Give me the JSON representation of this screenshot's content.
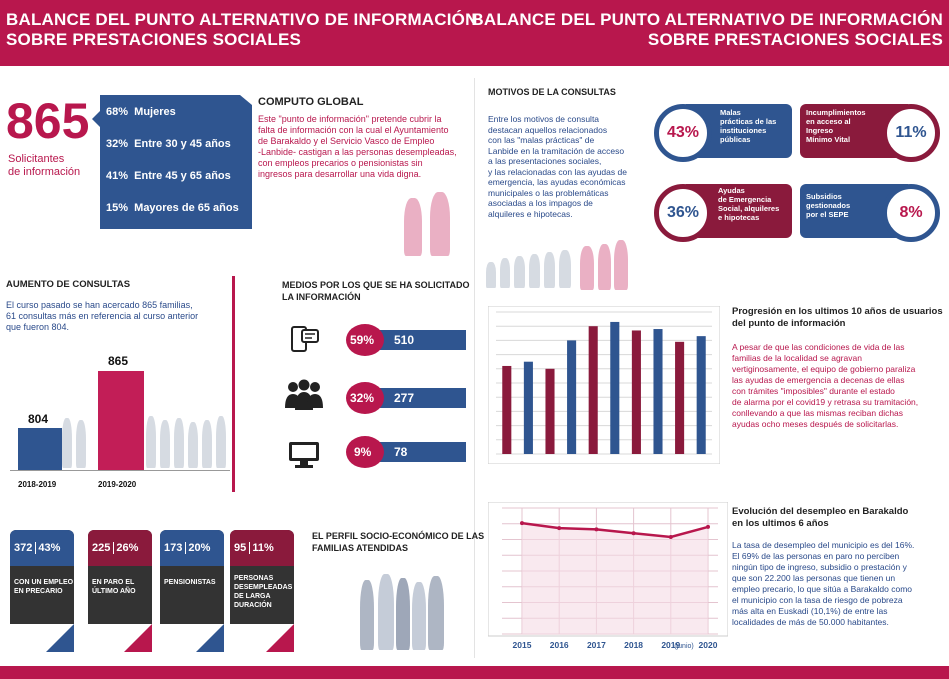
{
  "header": {
    "left_line1": "BALANCE DEL PUNTO ALTERNATIVO DE INFORMACIÓN",
    "left_line2": "SOBRE PRESTACIONES SOCIALES",
    "right_line1": "BALANCE DEL PUNTO ALTERNATIVO DE INFORMACIÓN",
    "right_line2": "SOBRE PRESTACIONES SOCIALES"
  },
  "solicitantes": {
    "number": "865",
    "label_line1": "Solicitantes",
    "label_line2": "de información",
    "rows": [
      {
        "pct": "68%",
        "label": "Mujeres"
      },
      {
        "pct": "32%",
        "label": "Entre 30 y 45 años"
      },
      {
        "pct": "41%",
        "label": "Entre 45 y 65 años"
      },
      {
        "pct": "15%",
        "label": "Mayores de 65 años"
      }
    ]
  },
  "computo": {
    "title": "COMPUTO GLOBAL",
    "lines": [
      "Este \"punto de información\" pretende cubrir la",
      "falta de información con la cual el Ayuntamiento",
      "de Barakaldo y el Servicio Vasco de Empleo",
      "-Lanbide- castigan a las personas desempleadas,",
      "con empleos precarios o pensionistas sin",
      "ingresos para desarrollar una vida digna."
    ]
  },
  "motivos": {
    "title": "MOTIVOS DE LA CONSULTAS",
    "lines": [
      "Entre los motivos de consulta",
      "destacan aquellos relacionados",
      "con las \"malas prácticas\" de",
      "Lanbide en la tramitación de acceso",
      "a las presentaciones sociales,",
      "y las relacionadas con las ayudas de",
      "emergencia, las ayudas económicas",
      "municipales o las problemáticas",
      "asociadas a los impagos de",
      "alquileres e hipotecas."
    ],
    "items": [
      {
        "pct": "43%",
        "label": [
          "Malas",
          "prácticas de las",
          "instituciones",
          "públicas"
        ]
      },
      {
        "pct": "11%",
        "label": [
          "Incumplimientos",
          "en acceso al",
          "Ingreso",
          "Mínimo Vital"
        ]
      },
      {
        "pct": "36%",
        "label": [
          "Ayudas",
          "de Emergencia",
          "Social, alquileres",
          "e hipotecas"
        ]
      },
      {
        "pct": "8%",
        "label": [
          "Subsidios",
          "gestionados",
          "por el SEPE"
        ]
      }
    ]
  },
  "aumento": {
    "title": "AUMENTO DE CONSULTAS",
    "lines": [
      "El curso pasado se han acercado 865 familias,",
      "61 consultas más en referencia al curso anterior",
      "que fueron 804."
    ],
    "bars": [
      {
        "label": "2018-2019",
        "value": "804"
      },
      {
        "label": "2019-2020",
        "value": "865"
      }
    ]
  },
  "medios": {
    "title_line1": "MEDIOS POR LOS QUE SE HA SOLICITADO",
    "title_line2": "LA INFORMACIÓN",
    "rows": [
      {
        "icon": "phone-icon",
        "pct": "59%",
        "value": "510"
      },
      {
        "icon": "people-icon",
        "pct": "32%",
        "value": "277"
      },
      {
        "icon": "computer-icon",
        "pct": "9%",
        "value": "78"
      }
    ]
  },
  "perfil": {
    "title_line1": "EL PERFIL SOCIO-ECONÓMICO DE LAS",
    "title_line2": "FAMILIAS ATENDIDAS",
    "cards": [
      {
        "num": "372",
        "pct": "43%",
        "label": [
          "CON UN EMPLEO",
          "EN PRECARIO"
        ]
      },
      {
        "num": "225",
        "pct": "26%",
        "label": [
          "EN PARO EL",
          "ÚLTIMO AÑO"
        ]
      },
      {
        "num": "173",
        "pct": "20%",
        "label": [
          "PENSIONISTAS"
        ]
      },
      {
        "num": "95",
        "pct": "11%",
        "label": [
          "PERSONAS",
          "DESEMPLEADAS",
          "DE LARGA",
          "DURACIÓN"
        ]
      }
    ]
  },
  "progresion": {
    "title_line1": "Progresión en los ultimos 10 años de usuarios",
    "title_line2": "del punto de información",
    "lines": [
      "A pesar de que las condiciones de vida de las",
      "familias de la localidad se agravan",
      "vertiginosamente, el equipo de gobierno paraliza",
      "las ayudas de emergencia a decenas de ellas",
      "con trámites \"imposibles\" durante el estado",
      "de alarma por el covid19 y retrasa su tramitación,",
      "conllevando a que las mismas reciban dichas",
      "ayudas ocho meses después de solicitarlas."
    ]
  },
  "evolucion": {
    "title_line1": "Evolución del desempleo en Barakaldo",
    "title_line2": "en los ultimos 6 años",
    "lines": [
      "La tasa de desempleo del municipio es del 16%.",
      "El 69% de las personas en paro no perciben",
      "ningún tipo de ingreso, subsidio o prestación y",
      "que son 22.200 las personas que tienen un",
      "empleo precario, lo que sitúa a Barakaldo como",
      "el municipio con la tasa de riesgo de pobreza",
      "más alta en Euskadi (10,1%) de entre las",
      "localidades de más de 50.000 habitantes."
    ]
  },
  "colors": {
    "primary": "#b8174d",
    "navy": "#2f5590",
    "wine": "#8a1a3c",
    "text": "#2a4a8a"
  },
  "chart_data": [
    {
      "type": "bar",
      "categories": [
        "",
        "",
        "",
        "",
        "",
        "",
        "",
        "",
        "",
        ""
      ],
      "values": [
        62,
        65,
        60,
        80,
        90,
        93,
        87,
        88,
        79,
        83
      ],
      "series_colors": [
        "#8a1a3c",
        "#2f5590"
      ],
      "ylim": [
        0,
        100
      ],
      "grid": true
    },
    {
      "type": "line",
      "x": [
        "2015",
        "2016",
        "2017",
        "2018",
        "2019",
        "2020"
      ],
      "x_note": "(junio)",
      "values": [
        88,
        84,
        83,
        80,
        77,
        85
      ],
      "ylim": [
        0,
        100
      ],
      "grid": true
    }
  ]
}
